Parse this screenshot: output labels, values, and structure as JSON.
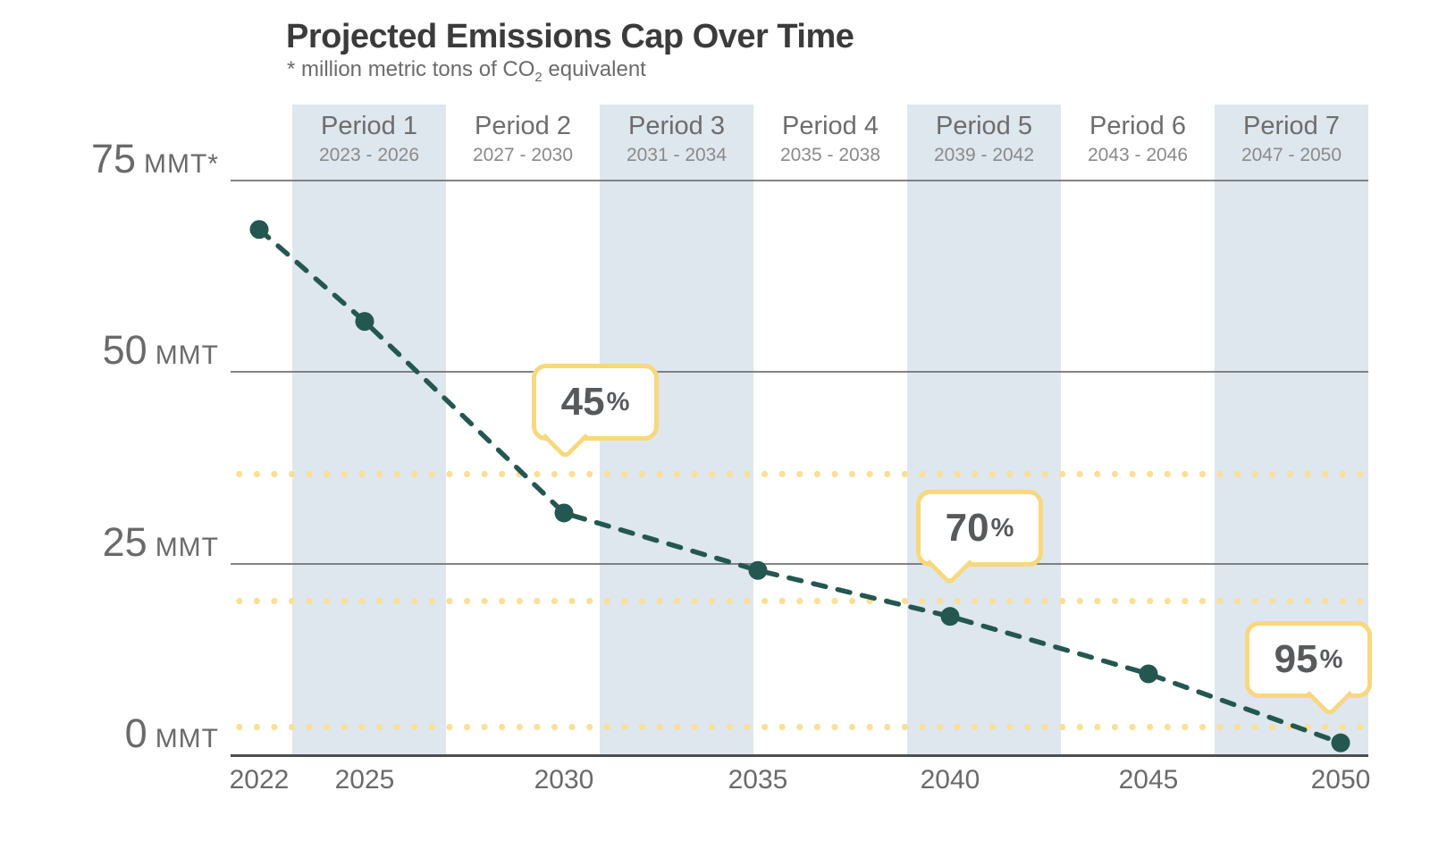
{
  "title": "Projected Emissions Cap Over Time",
  "subtitle": {
    "pre": "* million metric tons of CO",
    "sub": "2",
    "post": " equivalent"
  },
  "colors": {
    "series_line": "#235750",
    "period_band": "#dee6ee",
    "target_dots": "#fadf96",
    "callout_border": "#f8d87e",
    "gridline": "#6e6e6e",
    "axis_line": "#4e4e4e",
    "title_text": "#3b3b3b",
    "label_text": "#6a6a6a"
  },
  "periods": [
    {
      "label": "Period 1",
      "years": "2023 - 2026",
      "shaded": true
    },
    {
      "label": "Period 2",
      "years": "2027 - 2030",
      "shaded": false
    },
    {
      "label": "Period 3",
      "years": "2031 - 2034",
      "shaded": true
    },
    {
      "label": "Period 4",
      "years": "2035 - 2038",
      "shaded": false
    },
    {
      "label": "Period 5",
      "years": "2039 - 2042",
      "shaded": true
    },
    {
      "label": "Period 6",
      "years": "2043 - 2046",
      "shaded": false
    },
    {
      "label": "Period 7",
      "years": "2047 - 2050",
      "shaded": true
    }
  ],
  "y_axis": {
    "labels": [
      {
        "value": 75,
        "num": "75",
        "unit": "MMT*"
      },
      {
        "value": 50,
        "num": "50",
        "unit": "MMT"
      },
      {
        "value": 25,
        "num": "25",
        "unit": "MMT"
      },
      {
        "value": 0,
        "num": "0",
        "unit": "MMT"
      }
    ]
  },
  "x_axis": {
    "years": [
      "2022",
      "2025",
      "2030",
      "2035",
      "2040",
      "2045",
      "2050"
    ]
  },
  "callouts": [
    {
      "percent": "45",
      "suffix": "%"
    },
    {
      "percent": "70",
      "suffix": "%"
    },
    {
      "percent": "95",
      "suffix": "%"
    }
  ],
  "chart_data": {
    "type": "line",
    "title": "Projected Emissions Cap Over Time",
    "units_note": "* million metric tons of CO2 equivalent",
    "x": [
      2022,
      2025,
      2030,
      2035,
      2040,
      2045,
      2050
    ],
    "series": [
      {
        "name": "Projected emissions cap (MMT CO2e)",
        "values": [
          68.5,
          56.5,
          31.5,
          24,
          18,
          10.5,
          1.5
        ]
      }
    ],
    "target_lines": [
      {
        "label": "45%",
        "mmt": 36.6
      },
      {
        "label": "70%",
        "mmt": 20.1
      },
      {
        "label": "95%",
        "mmt": 3.6
      }
    ],
    "ylabel": "MMT",
    "ylim": [
      0,
      75
    ],
    "xlim": [
      2022,
      2050
    ],
    "line_style": "dashed",
    "grid": "horizontal",
    "legend_position": "none"
  }
}
